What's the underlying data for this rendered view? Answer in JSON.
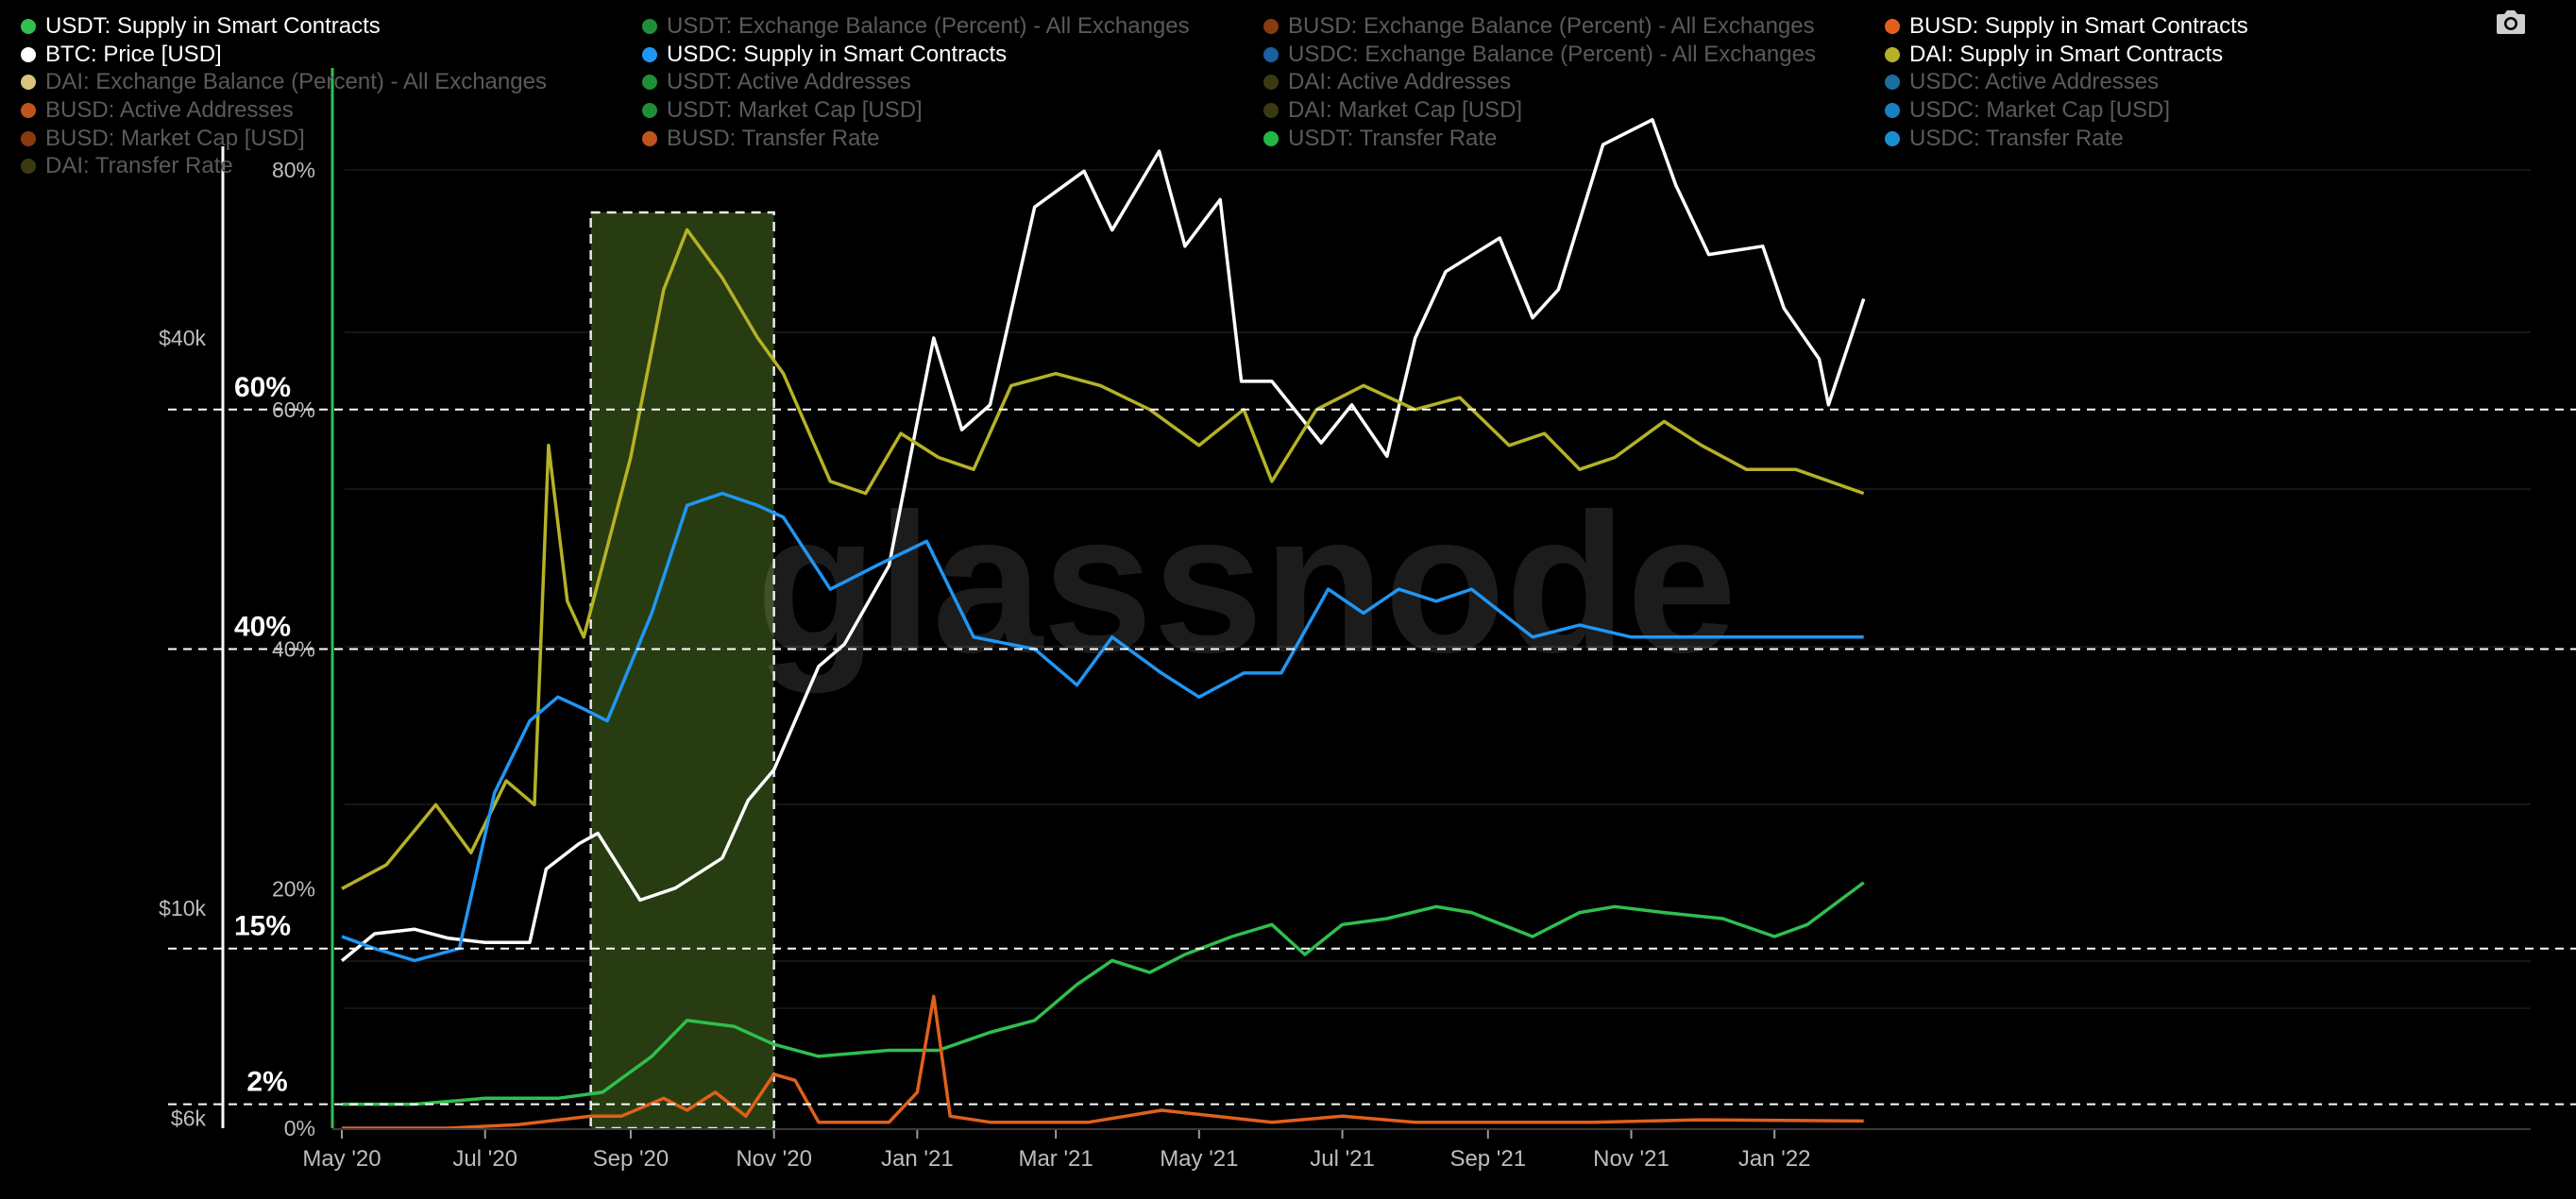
{
  "legend": [
    {
      "label": "USDT: Supply in Smart Contracts",
      "color": "#2fbf4f",
      "active": true
    },
    {
      "label": "USDT: Exchange Balance (Percent) - All Exchanges",
      "color": "#1e8f36",
      "active": false
    },
    {
      "label": "BUSD: Exchange Balance (Percent) - All Exchanges",
      "color": "#8a3a10",
      "active": false
    },
    {
      "label": "BUSD: Supply in Smart Contracts",
      "color": "#e0601c",
      "active": true
    },
    {
      "label": "BTC: Price [USD]",
      "color": "#ffffff",
      "active": true
    },
    {
      "label": "USDC: Supply in Smart Contracts",
      "color": "#2196f3",
      "active": true
    },
    {
      "label": "USDC: Exchange Balance (Percent) - All Exchanges",
      "color": "#1a5fa0",
      "active": false
    },
    {
      "label": "DAI: Supply in Smart Contracts",
      "color": "#b5b227",
      "active": true
    },
    {
      "label": "DAI: Exchange Balance (Percent) - All Exchanges",
      "color": "#d9c27a",
      "active": false
    },
    {
      "label": "USDT: Active Addresses",
      "color": "#1e8f36",
      "active": false
    },
    {
      "label": "DAI: Active Addresses",
      "color": "#3a3a10",
      "active": false
    },
    {
      "label": "USDC: Active Addresses",
      "color": "#1a6fa0",
      "active": false
    },
    {
      "label": "BUSD: Active Addresses",
      "color": "#c0541a",
      "active": false
    },
    {
      "label": "USDT: Market Cap [USD]",
      "color": "#1e8f36",
      "active": false
    },
    {
      "label": "DAI: Market Cap [USD]",
      "color": "#3a3a10",
      "active": false
    },
    {
      "label": "USDC: Market Cap [USD]",
      "color": "#1a7fc0",
      "active": false
    },
    {
      "label": "BUSD: Market Cap [USD]",
      "color": "#8a3a10",
      "active": false
    },
    {
      "label": "BUSD: Transfer Rate",
      "color": "#c0541a",
      "active": false
    },
    {
      "label": "USDT: Transfer Rate",
      "color": "#22b845",
      "active": false
    },
    {
      "label": "USDC: Transfer Rate",
      "color": "#1a8fd0",
      "active": false
    },
    {
      "label": "DAI: Transfer Rate",
      "color": "#3a3a10",
      "active": false
    }
  ],
  "watermark": "glassnode",
  "chart_data": {
    "type": "line",
    "x_ticks": [
      "May '20",
      "Jul '20",
      "Sep '20",
      "Nov '20",
      "Jan '21",
      "Mar '21",
      "May '21",
      "Jul '21",
      "Sep '21",
      "Nov '21",
      "Jan '22"
    ],
    "x_range": [
      "2020-05-01",
      "2022-02-10"
    ],
    "y_left_ticks": [
      "$40k",
      "$10k",
      "$6k"
    ],
    "y_left_scale": "log",
    "y_right_ticks": [
      "80%",
      "60%",
      "40%",
      "20%",
      "0%"
    ],
    "y_right_range": [
      0,
      80
    ],
    "reference_lines": [
      {
        "value": 60,
        "label": "60%"
      },
      {
        "value": 40,
        "label": "40%"
      },
      {
        "value": 15,
        "label": "15%"
      },
      {
        "value": 2,
        "label": "2%"
      }
    ],
    "highlight": {
      "start": "2020-08-15",
      "end": "2020-11-01",
      "color": "#2a3f12"
    },
    "series": [
      {
        "name": "BTC: Price [USD]",
        "color": "#ffffff",
        "axis": "left",
        "points": [
          [
            "2020-05-01",
            8800
          ],
          [
            "2020-05-15",
            9400
          ],
          [
            "2020-06-01",
            9500
          ],
          [
            "2020-06-15",
            9300
          ],
          [
            "2020-07-01",
            9200
          ],
          [
            "2020-07-20",
            9200
          ],
          [
            "2020-07-27",
            11000
          ],
          [
            "2020-08-10",
            11700
          ],
          [
            "2020-08-18",
            12000
          ],
          [
            "2020-09-05",
            10200
          ],
          [
            "2020-09-20",
            10500
          ],
          [
            "2020-10-10",
            11300
          ],
          [
            "2020-10-21",
            13000
          ],
          [
            "2020-11-01",
            14000
          ],
          [
            "2020-11-20",
            18000
          ],
          [
            "2020-12-01",
            19000
          ],
          [
            "2020-12-20",
            23000
          ],
          [
            "2021-01-08",
            40000
          ],
          [
            "2021-01-20",
            32000
          ],
          [
            "2021-02-01",
            34000
          ],
          [
            "2021-02-20",
            55000
          ],
          [
            "2021-03-13",
            60000
          ],
          [
            "2021-03-25",
            52000
          ],
          [
            "2021-04-14",
            63000
          ],
          [
            "2021-04-25",
            50000
          ],
          [
            "2021-05-10",
            56000
          ],
          [
            "2021-05-19",
            36000
          ],
          [
            "2021-06-01",
            36000
          ],
          [
            "2021-06-22",
            31000
          ],
          [
            "2021-07-05",
            34000
          ],
          [
            "2021-07-20",
            30000
          ],
          [
            "2021-08-01",
            40000
          ],
          [
            "2021-08-14",
            47000
          ],
          [
            "2021-09-06",
            51000
          ],
          [
            "2021-09-20",
            42000
          ],
          [
            "2021-10-01",
            45000
          ],
          [
            "2021-10-20",
            64000
          ],
          [
            "2021-11-10",
            68000
          ],
          [
            "2021-11-20",
            58000
          ],
          [
            "2021-12-04",
            49000
          ],
          [
            "2021-12-27",
            50000
          ],
          [
            "2022-01-05",
            43000
          ],
          [
            "2022-01-20",
            38000
          ],
          [
            "2022-01-24",
            34000
          ],
          [
            "2022-02-08",
            44000
          ]
        ]
      },
      {
        "name": "DAI: Supply in Smart Contracts",
        "color": "#b5b227",
        "axis": "right",
        "points": [
          [
            "2020-05-01",
            20
          ],
          [
            "2020-05-20",
            22
          ],
          [
            "2020-06-10",
            27
          ],
          [
            "2020-06-25",
            23
          ],
          [
            "2020-07-10",
            29
          ],
          [
            "2020-07-22",
            27
          ],
          [
            "2020-07-28",
            57
          ],
          [
            "2020-08-05",
            44
          ],
          [
            "2020-08-12",
            41
          ],
          [
            "2020-08-20",
            47
          ],
          [
            "2020-09-01",
            56
          ],
          [
            "2020-09-15",
            70
          ],
          [
            "2020-09-25",
            75
          ],
          [
            "2020-10-10",
            71
          ],
          [
            "2020-10-25",
            66
          ],
          [
            "2020-11-05",
            63
          ],
          [
            "2020-11-25",
            54
          ],
          [
            "2020-12-10",
            53
          ],
          [
            "2020-12-25",
            58
          ],
          [
            "2021-01-10",
            56
          ],
          [
            "2021-01-25",
            55
          ],
          [
            "2021-02-10",
            62
          ],
          [
            "2021-03-01",
            63
          ],
          [
            "2021-03-20",
            62
          ],
          [
            "2021-04-10",
            60
          ],
          [
            "2021-05-01",
            57
          ],
          [
            "2021-05-20",
            60
          ],
          [
            "2021-06-01",
            54
          ],
          [
            "2021-06-20",
            60
          ],
          [
            "2021-07-10",
            62
          ],
          [
            "2021-08-01",
            60
          ],
          [
            "2021-08-20",
            61
          ],
          [
            "2021-09-10",
            57
          ],
          [
            "2021-09-25",
            58
          ],
          [
            "2021-10-10",
            55
          ],
          [
            "2021-10-25",
            56
          ],
          [
            "2021-11-15",
            59
          ],
          [
            "2021-12-01",
            57
          ],
          [
            "2021-12-20",
            55
          ],
          [
            "2022-01-10",
            55
          ],
          [
            "2022-02-08",
            53
          ]
        ]
      },
      {
        "name": "USDC: Supply in Smart Contracts",
        "color": "#2196f3",
        "axis": "right",
        "points": [
          [
            "2020-05-01",
            16
          ],
          [
            "2020-05-15",
            15
          ],
          [
            "2020-06-01",
            14
          ],
          [
            "2020-06-20",
            15
          ],
          [
            "2020-07-05",
            28
          ],
          [
            "2020-07-20",
            34
          ],
          [
            "2020-08-01",
            36
          ],
          [
            "2020-08-12",
            35
          ],
          [
            "2020-08-22",
            34
          ],
          [
            "2020-09-10",
            43
          ],
          [
            "2020-09-25",
            52
          ],
          [
            "2020-10-10",
            53
          ],
          [
            "2020-10-25",
            52
          ],
          [
            "2020-11-05",
            51
          ],
          [
            "2020-11-25",
            45
          ],
          [
            "2020-12-15",
            47
          ],
          [
            "2021-01-05",
            49
          ],
          [
            "2021-01-25",
            41
          ],
          [
            "2021-02-20",
            40
          ],
          [
            "2021-03-10",
            37
          ],
          [
            "2021-03-25",
            41
          ],
          [
            "2021-04-15",
            38
          ],
          [
            "2021-05-01",
            36
          ],
          [
            "2021-05-20",
            38
          ],
          [
            "2021-06-05",
            38
          ],
          [
            "2021-06-25",
            45
          ],
          [
            "2021-07-10",
            43
          ],
          [
            "2021-07-25",
            45
          ],
          [
            "2021-08-10",
            44
          ],
          [
            "2021-08-25",
            45
          ],
          [
            "2021-09-20",
            41
          ],
          [
            "2021-10-10",
            42
          ],
          [
            "2021-11-01",
            41
          ],
          [
            "2021-12-01",
            41
          ],
          [
            "2022-01-01",
            41
          ],
          [
            "2022-02-08",
            41
          ]
        ]
      },
      {
        "name": "USDT: Supply in Smart Contracts",
        "color": "#2fbf4f",
        "axis": "right",
        "points": [
          [
            "2020-05-01",
            2
          ],
          [
            "2020-06-01",
            2
          ],
          [
            "2020-07-01",
            2.5
          ],
          [
            "2020-08-01",
            2.5
          ],
          [
            "2020-08-20",
            3
          ],
          [
            "2020-09-10",
            6
          ],
          [
            "2020-09-25",
            9
          ],
          [
            "2020-10-15",
            8.5
          ],
          [
            "2020-11-01",
            7
          ],
          [
            "2020-11-20",
            6
          ],
          [
            "2020-12-20",
            6.5
          ],
          [
            "2021-01-10",
            6.5
          ],
          [
            "2021-02-01",
            8
          ],
          [
            "2021-02-20",
            9
          ],
          [
            "2021-03-10",
            12
          ],
          [
            "2021-03-25",
            14
          ],
          [
            "2021-04-10",
            13
          ],
          [
            "2021-04-25",
            14.5
          ],
          [
            "2021-05-15",
            16
          ],
          [
            "2021-06-01",
            17
          ],
          [
            "2021-06-15",
            14.5
          ],
          [
            "2021-07-01",
            17
          ],
          [
            "2021-07-20",
            17.5
          ],
          [
            "2021-08-10",
            18.5
          ],
          [
            "2021-08-25",
            18
          ],
          [
            "2021-09-20",
            16
          ],
          [
            "2021-10-10",
            18
          ],
          [
            "2021-10-25",
            18.5
          ],
          [
            "2021-11-15",
            18
          ],
          [
            "2021-12-10",
            17.5
          ],
          [
            "2022-01-01",
            16
          ],
          [
            "2022-01-15",
            17
          ],
          [
            "2022-02-08",
            20.5
          ]
        ]
      },
      {
        "name": "BUSD: Supply in Smart Contracts",
        "color": "#e0601c",
        "axis": "right",
        "points": [
          [
            "2020-05-01",
            0
          ],
          [
            "2020-06-15",
            0
          ],
          [
            "2020-07-15",
            0.3
          ],
          [
            "2020-08-15",
            1
          ],
          [
            "2020-08-28",
            1
          ],
          [
            "2020-09-15",
            2.5
          ],
          [
            "2020-09-25",
            1.5
          ],
          [
            "2020-10-07",
            3
          ],
          [
            "2020-10-20",
            1
          ],
          [
            "2020-11-01",
            4.5
          ],
          [
            "2020-11-10",
            4
          ],
          [
            "2020-11-20",
            0.5
          ],
          [
            "2020-12-20",
            0.5
          ],
          [
            "2021-01-01",
            3
          ],
          [
            "2021-01-08",
            11
          ],
          [
            "2021-01-15",
            1
          ],
          [
            "2021-02-01",
            0.5
          ],
          [
            "2021-03-15",
            0.5
          ],
          [
            "2021-04-15",
            1.5
          ],
          [
            "2021-06-01",
            0.5
          ],
          [
            "2021-07-01",
            1
          ],
          [
            "2021-08-01",
            0.5
          ],
          [
            "2021-09-15",
            0.5
          ],
          [
            "2021-10-15",
            0.5
          ],
          [
            "2021-12-01",
            0.7
          ],
          [
            "2022-02-08",
            0.6
          ]
        ]
      }
    ]
  }
}
